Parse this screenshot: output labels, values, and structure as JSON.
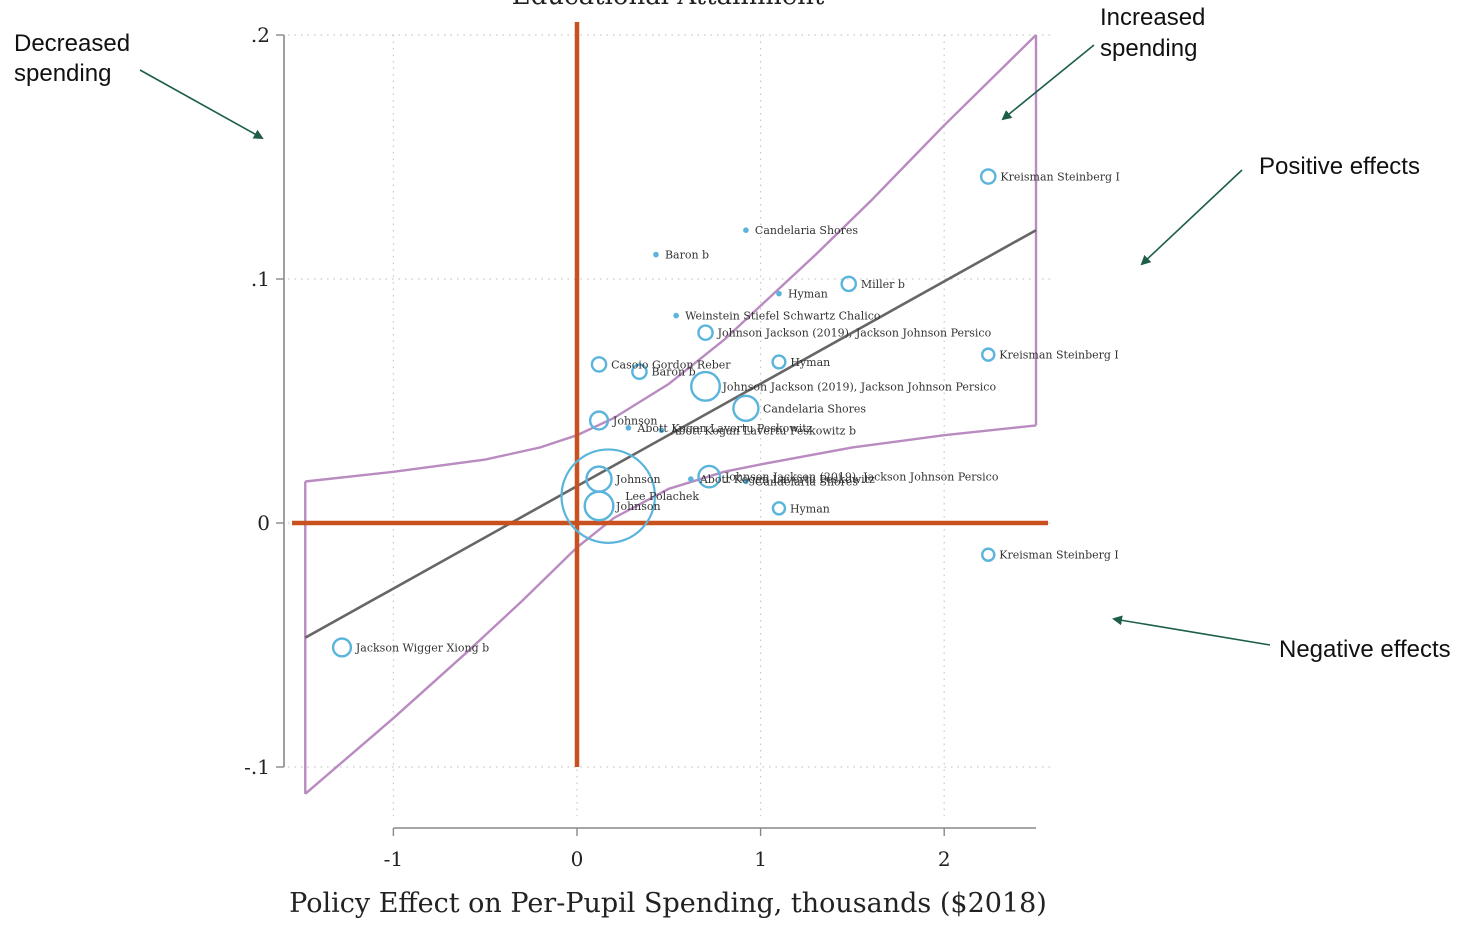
{
  "chart_data": {
    "type": "scatter",
    "title": "Educational Attainment",
    "xlabel": "Policy Effect on Per-Pupil Spending, thousands ($2018)",
    "ylabel": "",
    "xlim": [
      -1.5,
      2.5
    ],
    "ylim": [
      -0.11,
      0.2
    ],
    "xticks": [
      -1,
      0,
      1,
      2
    ],
    "xtick_labels": [
      "-1",
      "0",
      "1",
      "2"
    ],
    "yticks": [
      -0.1,
      0,
      0.1,
      0.2
    ],
    "ytick_labels": [
      "-.1",
      "0",
      ".1",
      ".2"
    ],
    "grid": true,
    "colors": {
      "points": "#5ab4dc",
      "fit_line": "#666666",
      "confidence_band": "#b98bc0",
      "reference_lines": "#c8511f",
      "arrows": "#1d5e4a"
    },
    "points": [
      {
        "label": "Kreisman Steinberg I",
        "x": 2.24,
        "y": 0.142,
        "size": 1
      },
      {
        "label": "Candelaria Shores",
        "x": 0.92,
        "y": 0.12,
        "size": 0
      },
      {
        "label": "Baron b",
        "x": 0.43,
        "y": 0.11,
        "size": 0
      },
      {
        "label": "Miller b",
        "x": 1.48,
        "y": 0.098,
        "size": 1
      },
      {
        "label": "Hyman",
        "x": 1.1,
        "y": 0.094,
        "size": 0
      },
      {
        "label": "Weinstein Stiefel Schwartz Chalico",
        "x": 0.54,
        "y": 0.085,
        "size": 0
      },
      {
        "label": "Johnson Jackson (2019), Jackson Johnson Persico",
        "x": 0.7,
        "y": 0.078,
        "size": 1
      },
      {
        "label": "Kreisman Steinberg I",
        "x": 2.24,
        "y": 0.069,
        "size": 0.7
      },
      {
        "label": "Casoio Gordon Reber",
        "x": 0.12,
        "y": 0.065,
        "size": 1
      },
      {
        "label": "Hyman",
        "x": 1.1,
        "y": 0.066,
        "size": 0.8
      },
      {
        "label": "Baron b",
        "x": 0.34,
        "y": 0.062,
        "size": 1
      },
      {
        "label": "Johnson Jackson (2019), Jackson Johnson Persico",
        "x": 0.7,
        "y": 0.056,
        "size": 3
      },
      {
        "label": "Candelaria Shores",
        "x": 0.92,
        "y": 0.047,
        "size": 2.5
      },
      {
        "label": "Johnson",
        "x": 0.12,
        "y": 0.042,
        "size": 1.5
      },
      {
        "label": "Abott Kogan Lavertu Peskowitz",
        "x": 0.28,
        "y": 0.039,
        "size": 0
      },
      {
        "label": "Abott Kogan Lavertu Peskowitz b",
        "x": 0.46,
        "y": 0.038,
        "size": 0
      },
      {
        "label": "Johnson Jackson (2019), Jackson Johnson Persico",
        "x": 0.72,
        "y": 0.019,
        "size": 2
      },
      {
        "label": "Abott Kogan Lavertu Peskowitz",
        "x": 0.62,
        "y": 0.018,
        "size": 0
      },
      {
        "label": "Candelaria Shores",
        "x": 0.92,
        "y": 0.017,
        "size": 0
      },
      {
        "label": "Johnson",
        "x": 0.12,
        "y": 0.018,
        "size": 2.5
      },
      {
        "label": "Lee Polachek",
        "x": 0.17,
        "y": 0.011,
        "size": 12
      },
      {
        "label": "Johnson",
        "x": 0.12,
        "y": 0.007,
        "size": 3
      },
      {
        "label": "Hyman",
        "x": 1.1,
        "y": 0.006,
        "size": 0.7
      },
      {
        "label": "Kreisman Steinberg I",
        "x": 2.24,
        "y": -0.013,
        "size": 0.7
      },
      {
        "label": "Jackson Wigger Xiong b",
        "x": -1.28,
        "y": -0.051,
        "size": 1.5
      }
    ],
    "fit_line": {
      "x": [
        -1.48,
        2.5
      ],
      "y": [
        -0.047,
        0.12
      ]
    },
    "confidence_band": {
      "upper": [
        [
          -1.48,
          0.017
        ],
        [
          -1.0,
          0.021
        ],
        [
          -0.5,
          0.026
        ],
        [
          -0.2,
          0.031
        ],
        [
          0.0,
          0.036
        ],
        [
          0.2,
          0.043
        ],
        [
          0.5,
          0.057
        ],
        [
          0.8,
          0.075
        ],
        [
          1.0,
          0.089
        ],
        [
          1.3,
          0.11
        ],
        [
          1.6,
          0.132
        ],
        [
          2.0,
          0.163
        ],
        [
          2.5,
          0.2
        ]
      ],
      "lower": [
        [
          -1.48,
          -0.111
        ],
        [
          -1.0,
          -0.08
        ],
        [
          -0.6,
          -0.053
        ],
        [
          -0.3,
          -0.032
        ],
        [
          0.0,
          -0.01
        ],
        [
          0.2,
          0.002
        ],
        [
          0.5,
          0.014
        ],
        [
          0.8,
          0.021
        ],
        [
          1.0,
          0.024
        ],
        [
          1.5,
          0.031
        ],
        [
          2.0,
          0.036
        ],
        [
          2.5,
          0.04
        ]
      ],
      "right_edge": [
        2.5,
        0.04,
        0.2
      ],
      "left_edge": [
        -1.48,
        -0.111,
        0.017
      ]
    }
  },
  "annotations": {
    "decreased_spending": [
      "Decreased",
      "spending"
    ],
    "increased_spending": [
      "Increased",
      "spending"
    ],
    "positive_effects": "Positive effects",
    "negative_effects": "Negative effects"
  }
}
